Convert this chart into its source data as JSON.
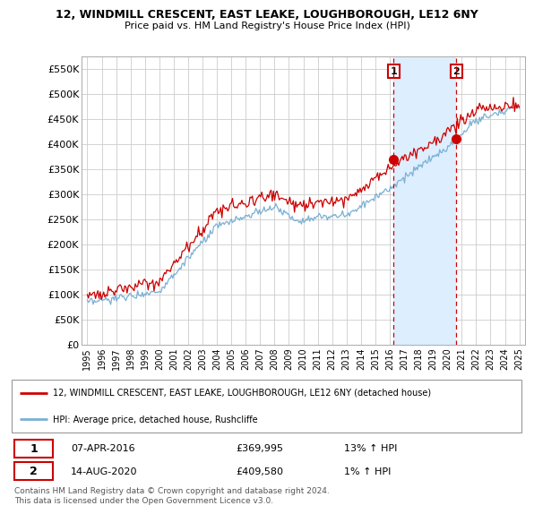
{
  "title": "12, WINDMILL CRESCENT, EAST LEAKE, LOUGHBOROUGH, LE12 6NY",
  "subtitle": "Price paid vs. HM Land Registry's House Price Index (HPI)",
  "ylabel_ticks": [
    "£0",
    "£50K",
    "£100K",
    "£150K",
    "£200K",
    "£250K",
    "£300K",
    "£350K",
    "£400K",
    "£450K",
    "£500K",
    "£550K"
  ],
  "ylim": [
    0,
    575000
  ],
  "ytick_vals": [
    0,
    50000,
    100000,
    150000,
    200000,
    250000,
    300000,
    350000,
    400000,
    450000,
    500000,
    550000
  ],
  "legend_line1": "12, WINDMILL CRESCENT, EAST LEAKE, LOUGHBOROUGH, LE12 6NY (detached house)",
  "legend_line2": "HPI: Average price, detached house, Rushcliffe",
  "transaction1_label": "1",
  "transaction1_date": "07-APR-2016",
  "transaction1_price": "£369,995",
  "transaction1_hpi": "13% ↑ HPI",
  "transaction2_label": "2",
  "transaction2_date": "14-AUG-2020",
  "transaction2_price": "£409,580",
  "transaction2_hpi": "1% ↑ HPI",
  "footer": "Contains HM Land Registry data © Crown copyright and database right 2024.\nThis data is licensed under the Open Government Licence v3.0.",
  "red_line_color": "#cc0000",
  "blue_line_color": "#7ab0d4",
  "shade_color": "#ddeeff",
  "dashed_line_color": "#cc0000",
  "grid_color": "#cccccc",
  "background_color": "#ffffff",
  "transaction1_x": 2016.28,
  "transaction2_x": 2020.62,
  "transaction1_y": 369995,
  "transaction2_y": 409580,
  "xlim_left": 1994.6,
  "xlim_right": 2025.4
}
